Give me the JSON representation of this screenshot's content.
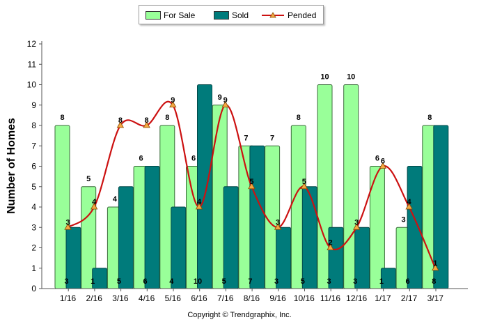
{
  "chart_data": {
    "type": "bar",
    "ylabel": "Number of Homes",
    "xlabel": "",
    "ylim": [
      0,
      12
    ],
    "yticks": [
      0,
      1,
      2,
      3,
      4,
      5,
      6,
      7,
      8,
      9,
      10,
      11,
      12
    ],
    "categories": [
      "1/16",
      "2/16",
      "3/16",
      "4/16",
      "5/16",
      "6/16",
      "7/16",
      "8/16",
      "9/16",
      "10/16",
      "11/16",
      "12/16",
      "1/17",
      "2/17",
      "3/17"
    ],
    "series": [
      {
        "name": "For Sale",
        "type": "bar",
        "color": "#99ff99",
        "values": [
          8,
          5,
          4,
          6,
          8,
          6,
          9,
          7,
          7,
          8,
          10,
          10,
          6,
          3,
          8
        ]
      },
      {
        "name": "Sold",
        "type": "bar",
        "color": "#007b7b",
        "values": [
          3,
          1,
          5,
          6,
          4,
          10,
          5,
          7,
          3,
          5,
          3,
          3,
          1,
          6,
          8
        ]
      },
      {
        "name": "Pended",
        "type": "line",
        "color": "#cc1111",
        "marker": "triangle",
        "values": [
          3,
          4,
          8,
          8,
          9,
          4,
          9,
          5,
          3,
          5,
          2,
          3,
          6,
          4,
          1
        ]
      }
    ],
    "legend": "top-center",
    "grid": false
  },
  "footer": {
    "credit": "Copyright © Trendgraphix, Inc."
  }
}
